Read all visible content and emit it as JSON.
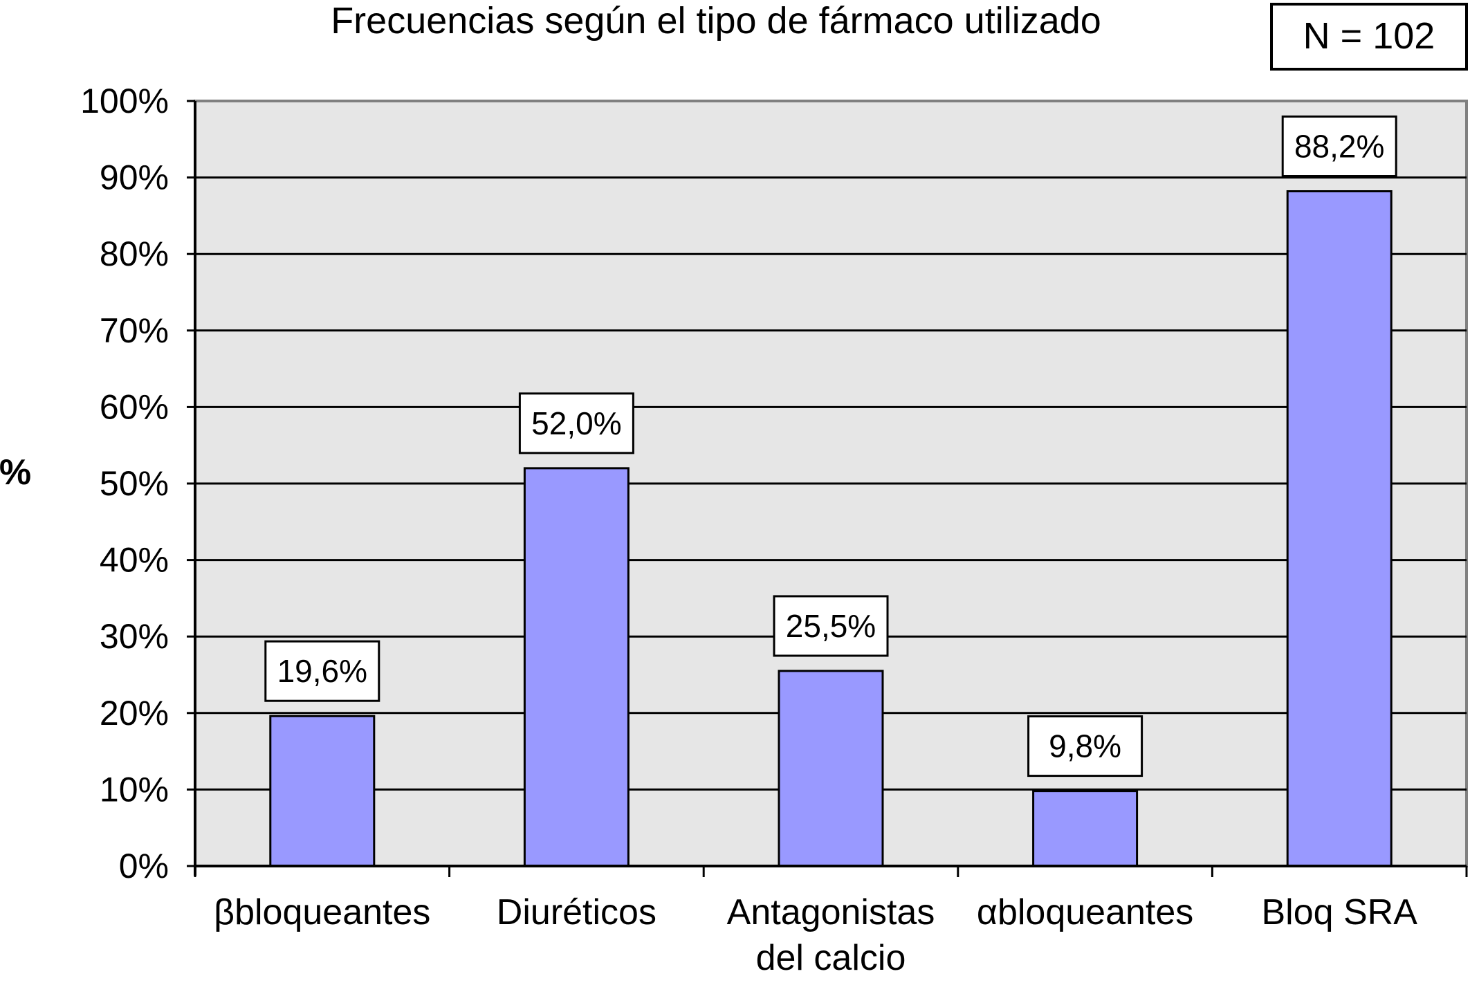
{
  "chart_data": {
    "type": "bar",
    "title": "Frecuencias según el tipo de fármaco utilizado",
    "annotation": "N = 102",
    "ylabel": "%",
    "xlabel": "",
    "ylim": [
      0,
      100
    ],
    "yticks": [
      "0%",
      "10%",
      "20%",
      "30%",
      "40%",
      "50%",
      "60%",
      "70%",
      "80%",
      "90%",
      "100%"
    ],
    "grid": true,
    "categories": [
      "βbloqueantes",
      "Diuréticos",
      "Antagonistas del calcio",
      "αbloqueantes",
      "Bloq SRA"
    ],
    "category_lines": [
      [
        "βbloqueantes"
      ],
      [
        "Diuréticos"
      ],
      [
        "Antagonistas",
        "del calcio"
      ],
      [
        "αbloqueantes"
      ],
      [
        "Bloq SRA"
      ]
    ],
    "values": [
      19.6,
      52.0,
      25.5,
      9.8,
      88.2
    ],
    "data_labels": [
      "19,6%",
      "52,0%",
      "25,5%",
      "9,8%",
      "88,2%"
    ],
    "colors": {
      "bar": "#9999ff",
      "plot_bg": "#e6e6e6",
      "grid": "#000000",
      "frame": "#808080"
    }
  }
}
